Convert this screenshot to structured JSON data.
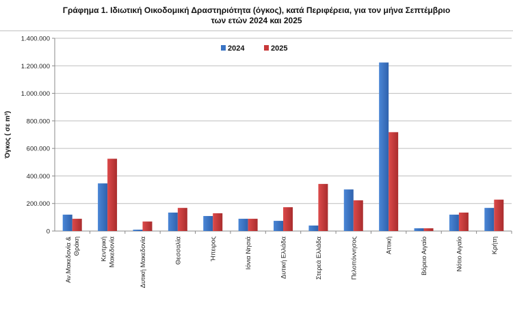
{
  "chart_data": {
    "type": "bar",
    "title": "Γράφημα 1.  Ιδιωτική Οικοδομική Δραστηριότητα (όγκος), κατά Περιφέρεια, για τον μήνα Σεπτέμβριο",
    "subtitle": "των ετών 2024 και 2025",
    "ylabel": "Όγκος ( σε m³)",
    "xlabel": "",
    "ylim": [
      0,
      1400000
    ],
    "yticks": [
      "0",
      "200.000",
      "400.000",
      "600.000",
      "800.000",
      "1.000.000",
      "1.200.000",
      "1.400.000"
    ],
    "ytick_values": [
      0,
      200000,
      400000,
      600000,
      800000,
      1000000,
      1200000,
      1400000
    ],
    "grid": true,
    "legend_placement": "top-center",
    "categories": [
      [
        "Αν.Μακεδονία &",
        "Θράκη"
      ],
      [
        "Κεντρική",
        "Μακεδονία"
      ],
      [
        "Δυτική Μακεδονία"
      ],
      [
        "Θεσσαλία"
      ],
      [
        "Ήπειρος"
      ],
      [
        "Ιόνια Νησιά"
      ],
      [
        "Δυτική Ελλάδα"
      ],
      [
        "Στερεά Ελλάδα"
      ],
      [
        "Πελοπόννησος"
      ],
      [
        "Αττική"
      ],
      [
        "Βόρειο Αιγαίο"
      ],
      [
        "Νότιο Αιγαίο"
      ],
      [
        "Κρήτη"
      ]
    ],
    "series": [
      {
        "name": "2024",
        "color": "#3a74c4",
        "values": [
          119000,
          346000,
          10000,
          134000,
          109000,
          89000,
          74000,
          40000,
          302000,
          1224000,
          20000,
          119000,
          168000
        ]
      },
      {
        "name": "2025",
        "color": "#c8393a",
        "values": [
          89000,
          525000,
          69000,
          168000,
          129000,
          89000,
          173000,
          342000,
          223000,
          718000,
          20000,
          134000,
          228000
        ]
      }
    ]
  }
}
